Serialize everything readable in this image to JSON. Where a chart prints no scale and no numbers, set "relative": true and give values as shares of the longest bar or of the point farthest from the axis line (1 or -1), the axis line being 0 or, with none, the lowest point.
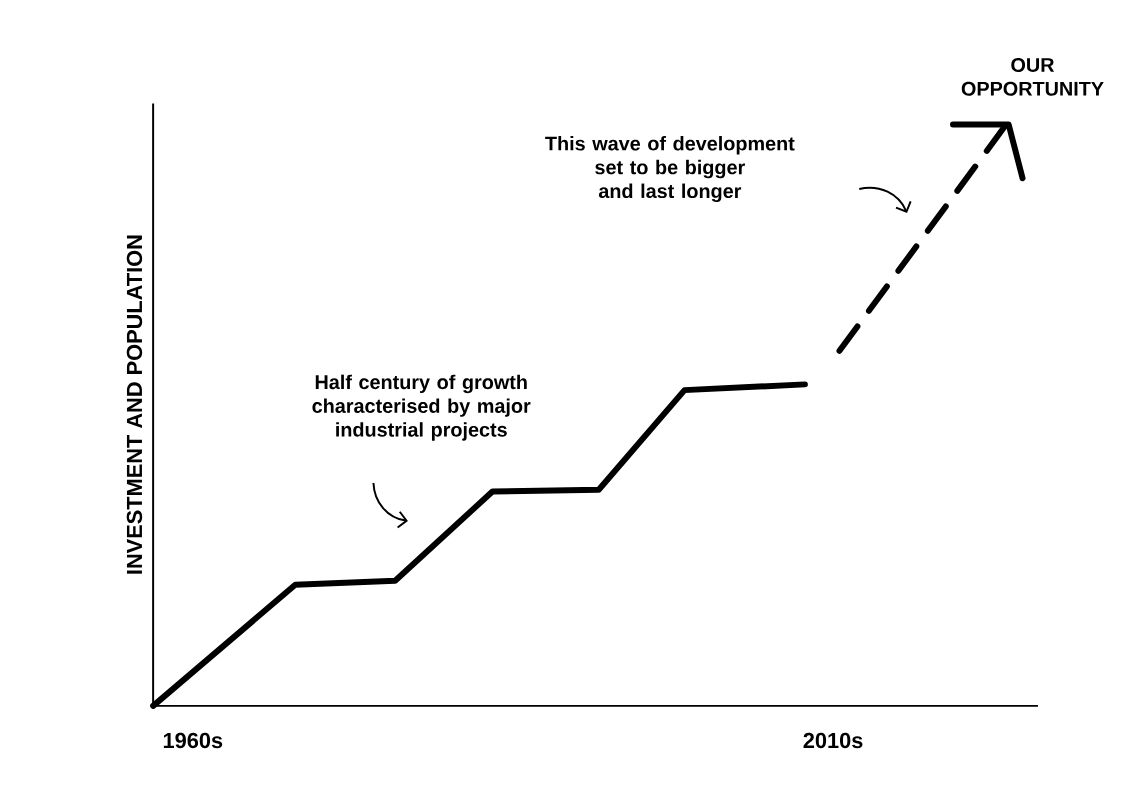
{
  "chart_data": {
    "type": "line",
    "relative": true,
    "ylabel": "INVESTMENT AND POPULATION",
    "xlim": [
      1956.9,
      2026
    ],
    "xticks": [
      {
        "value": 1960,
        "label": "1960s"
      },
      {
        "value": 2010,
        "label": "2010s"
      }
    ],
    "series": [
      {
        "color": "#000000",
        "line_style": "solid",
        "x": [
          1956.9,
          1968.0,
          1975.8,
          1983.4,
          1991.7,
          1998.4,
          2007.8
        ],
        "values": [
          0,
          0.209,
          0.216,
          0.37,
          0.373,
          0.545,
          0.555
        ]
      },
      {
        "color": "#000000",
        "line_style": "dashed",
        "x": [
          2010.5,
          2023.4
        ],
        "values": [
          0.613,
          1
        ]
      }
    ],
    "annotations": [
      "Half century of growth characterised by major industrial projects",
      "This wave of development set to be bigger and last longer",
      {
        "text": "OUR OPPORTUNITY",
        "x": 2023.4,
        "y": 1
      }
    ]
  }
}
